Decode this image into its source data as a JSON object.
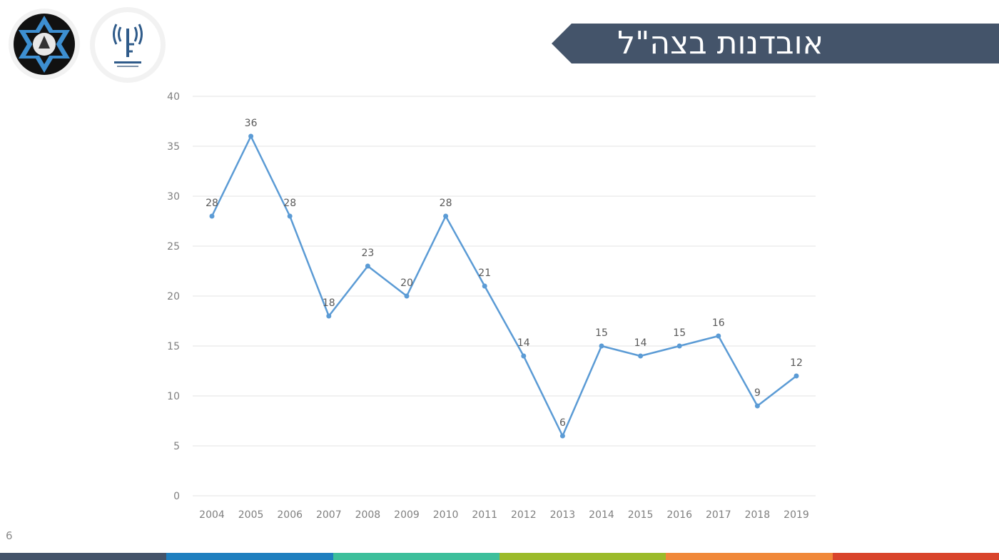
{
  "slide": {
    "title": "אובדנות בצה\"ל",
    "page_number": "6",
    "banner_color": "#44546a",
    "footer_colors": [
      "#44546a",
      "#1f7fbf",
      "#3dbf9b",
      "#9bbb2a",
      "#f0883a",
      "#d9442b"
    ]
  },
  "logos": [
    {
      "icon": "star-of-david-emblem-icon"
    },
    {
      "icon": "antenna-emblem-icon"
    }
  ],
  "chart_data": {
    "type": "line",
    "categories": [
      "2004",
      "2005",
      "2006",
      "2007",
      "2008",
      "2009",
      "2010",
      "2011",
      "2012",
      "2013",
      "2014",
      "2015",
      "2016",
      "2017",
      "2018",
      "2019"
    ],
    "series": [
      {
        "values": [
          28,
          36,
          28,
          18,
          23,
          20,
          28,
          21,
          14,
          6,
          15,
          14,
          15,
          16,
          9,
          12
        ],
        "color": "#5b9bd5"
      }
    ],
    "ylim": [
      0,
      40
    ],
    "yticks": [
      "0",
      "5",
      "10",
      "15",
      "20",
      "25",
      "30",
      "35",
      "40"
    ],
    "data_labels": [
      "28",
      "36",
      "28",
      "18",
      "23",
      "20",
      "28",
      "21",
      "14",
      "6",
      "15",
      "14",
      "15",
      "16",
      "9",
      "12"
    ],
    "grid": true,
    "legend": "none",
    "title": "",
    "xlabel": "",
    "ylabel": ""
  }
}
